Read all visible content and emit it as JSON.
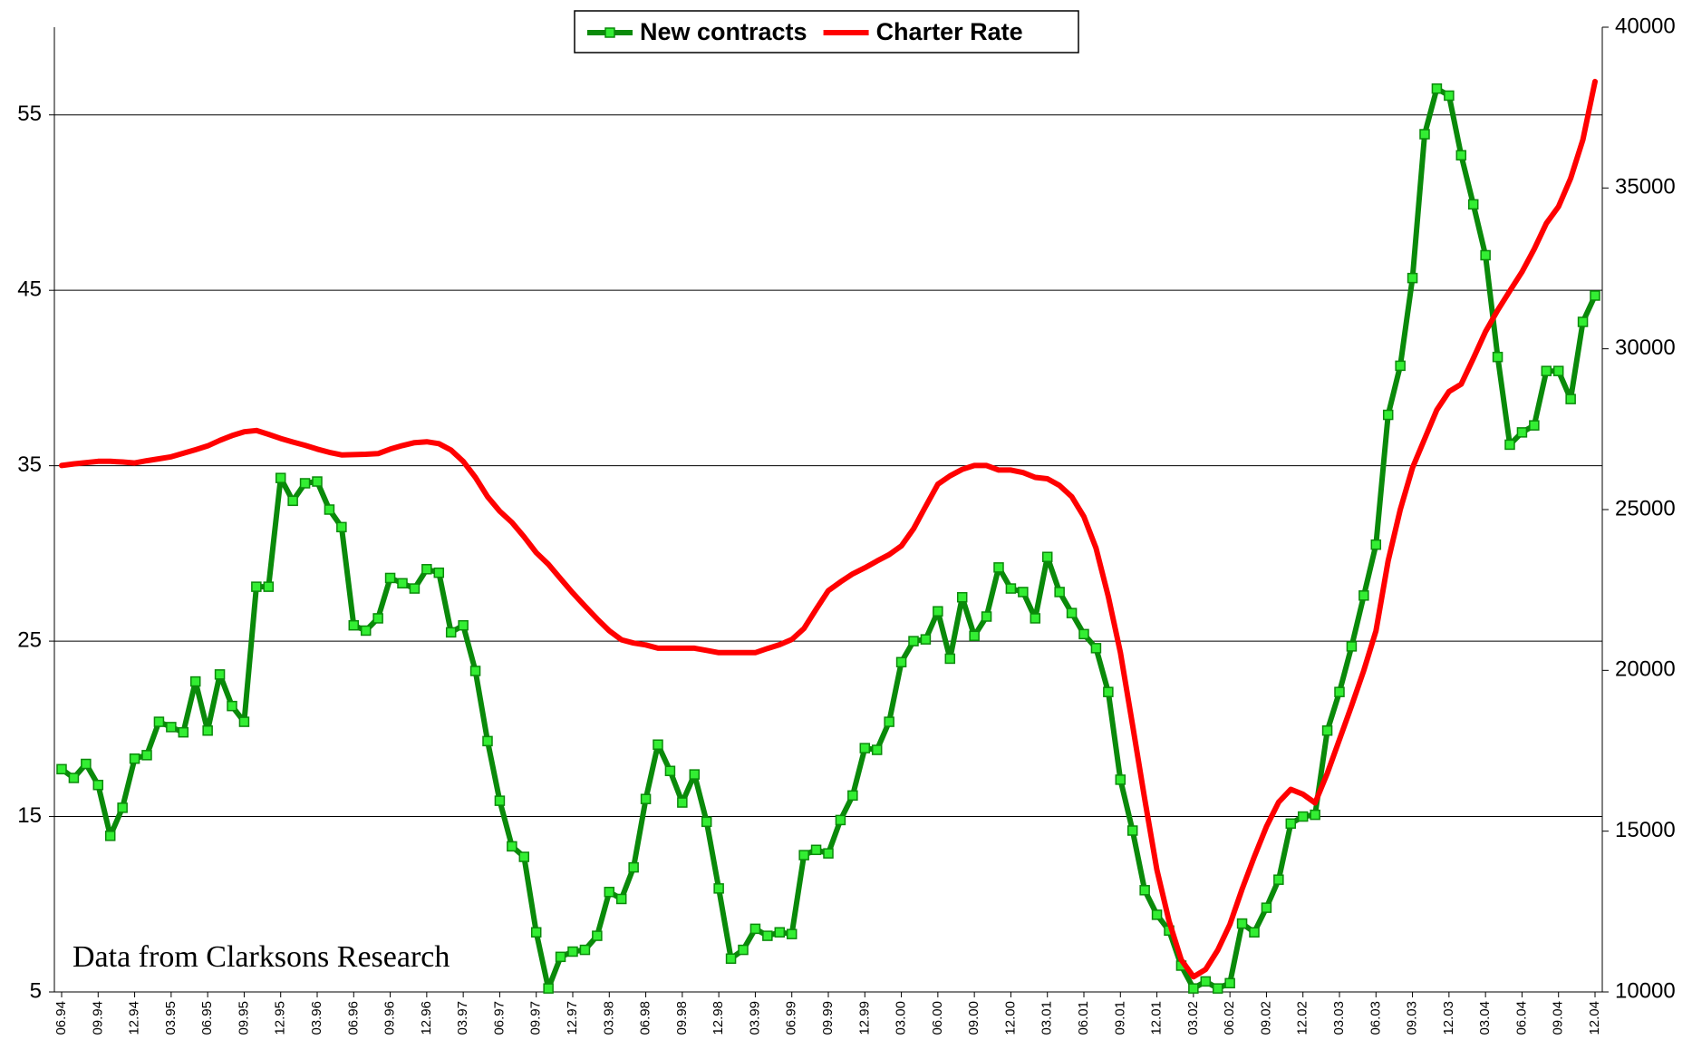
{
  "chart_data": {
    "type": "line",
    "annotation": "Data from Clarksons Research",
    "legend": "top",
    "grid": true,
    "categories": [
      "06.94",
      null,
      null,
      "09.94",
      null,
      null,
      "12.94",
      null,
      null,
      "03.95",
      null,
      null,
      "06.95",
      null,
      null,
      "09.95",
      null,
      null,
      "12.95",
      null,
      null,
      "03.96",
      null,
      null,
      "06.96",
      null,
      null,
      "09.96",
      null,
      null,
      "12.96",
      null,
      null,
      "03.97",
      null,
      null,
      "06.97",
      null,
      null,
      "09.97",
      null,
      null,
      "12.97",
      null,
      null,
      "03.98",
      null,
      null,
      "06.98",
      null,
      null,
      "09.98",
      null,
      null,
      "12.98",
      null,
      null,
      "03.99",
      null,
      null,
      "06.99",
      null,
      null,
      "09.99",
      null,
      null,
      "12.99",
      null,
      null,
      "03.00",
      null,
      null,
      "06.00",
      null,
      null,
      "09.00",
      null,
      null,
      "12.00",
      null,
      null,
      "03.01",
      null,
      null,
      "06.01",
      null,
      null,
      "09.01",
      null,
      null,
      "12.01",
      null,
      null,
      "03.02",
      null,
      null,
      "06.02",
      null,
      null,
      "09.02",
      null,
      null,
      "12.02",
      null,
      null,
      "03.03",
      null,
      null,
      "06.03",
      null,
      null,
      "09.03",
      null,
      null,
      "12.03",
      null,
      null,
      "03.04",
      null,
      null,
      "06.04",
      null,
      null,
      "09.04",
      null,
      null,
      "12.04"
    ],
    "series": [
      {
        "name": "New contracts",
        "color": "#0a8a0a",
        "marker_color": "#33ee33",
        "values": [
          17.7,
          17.2,
          18.0,
          16.8,
          13.9,
          15.5,
          18.3,
          18.5,
          20.4,
          20.1,
          19.8,
          22.7,
          19.9,
          23.1,
          21.3,
          20.4,
          28.1,
          28.1,
          34.3,
          33.0,
          34.0,
          34.1,
          32.5,
          31.5,
          25.9,
          25.6,
          26.3,
          28.6,
          28.3,
          28.0,
          29.1,
          28.9,
          25.5,
          25.9,
          23.3,
          19.3,
          15.9,
          13.3,
          12.7,
          8.4,
          5.2,
          7.0,
          7.3,
          7.4,
          8.2,
          10.7,
          10.3,
          12.1,
          16.0,
          19.1,
          17.6,
          15.8,
          17.4,
          14.7,
          10.9,
          6.9,
          7.4,
          8.6,
          8.2,
          8.4,
          8.3,
          12.8,
          13.1,
          12.9,
          14.8,
          16.2,
          18.9,
          18.8,
          20.4,
          23.8,
          25.0,
          25.1,
          26.7,
          24.0,
          27.5,
          25.3,
          26.4,
          29.2,
          28.0,
          27.8,
          26.3,
          29.8,
          27.8,
          26.6,
          25.4,
          24.6,
          22.1,
          17.1,
          14.2,
          10.8,
          9.4,
          8.5,
          6.5,
          5.2,
          5.6,
          5.2,
          5.5,
          8.9,
          8.4,
          9.8,
          11.4,
          14.6,
          15.0,
          15.1,
          19.9,
          22.1,
          24.7,
          27.6,
          30.5,
          37.9,
          40.7,
          45.7,
          53.9,
          56.5,
          56.1,
          52.7,
          49.9,
          47.0,
          41.2,
          36.2,
          36.9,
          37.3,
          40.4,
          40.4,
          38.8,
          43.2,
          44.7
        ]
      },
      {
        "name": "Charter Rate",
        "color": "#ff0000",
        "axis": "y2",
        "values": [
          26370,
          26420,
          26460,
          26500,
          26500,
          26480,
          26450,
          26520,
          26580,
          26640,
          26750,
          26860,
          26980,
          27150,
          27300,
          27420,
          27460,
          27340,
          27210,
          27100,
          27000,
          26880,
          26780,
          26700,
          26710,
          26720,
          26740,
          26880,
          26990,
          27080,
          27110,
          27050,
          26850,
          26500,
          26000,
          25400,
          24950,
          24600,
          24150,
          23660,
          23300,
          22850,
          22410,
          22000,
          21600,
          21230,
          20950,
          20850,
          20790,
          20690,
          20690,
          20690,
          20690,
          20620,
          20550,
          20550,
          20550,
          20550,
          20680,
          20800,
          20960,
          21300,
          21900,
          22480,
          22750,
          23000,
          23190,
          23400,
          23600,
          23870,
          24400,
          25100,
          25790,
          26050,
          26250,
          26370,
          26370,
          26230,
          26230,
          26150,
          26000,
          25960,
          25750,
          25400,
          24780,
          23800,
          22300,
          20550,
          18300,
          16000,
          13790,
          12200,
          11000,
          10470,
          10700,
          11300,
          12100,
          13200,
          14200,
          15140,
          15900,
          16300,
          16150,
          15880,
          16800,
          17850,
          18900,
          20000,
          21230,
          23400,
          25000,
          26300,
          27200,
          28100,
          28670,
          28900,
          29700,
          30530,
          31200,
          31800,
          32390,
          33100,
          33900,
          34420,
          35300,
          36500,
          38310
        ]
      }
    ],
    "ylim": [
      5,
      60
    ],
    "yticks": [
      5,
      15,
      25,
      35,
      45,
      55
    ],
    "y2lim": [
      10000,
      40000
    ],
    "y2ticks": [
      10000,
      15000,
      20000,
      25000,
      30000,
      35000,
      40000
    ]
  }
}
